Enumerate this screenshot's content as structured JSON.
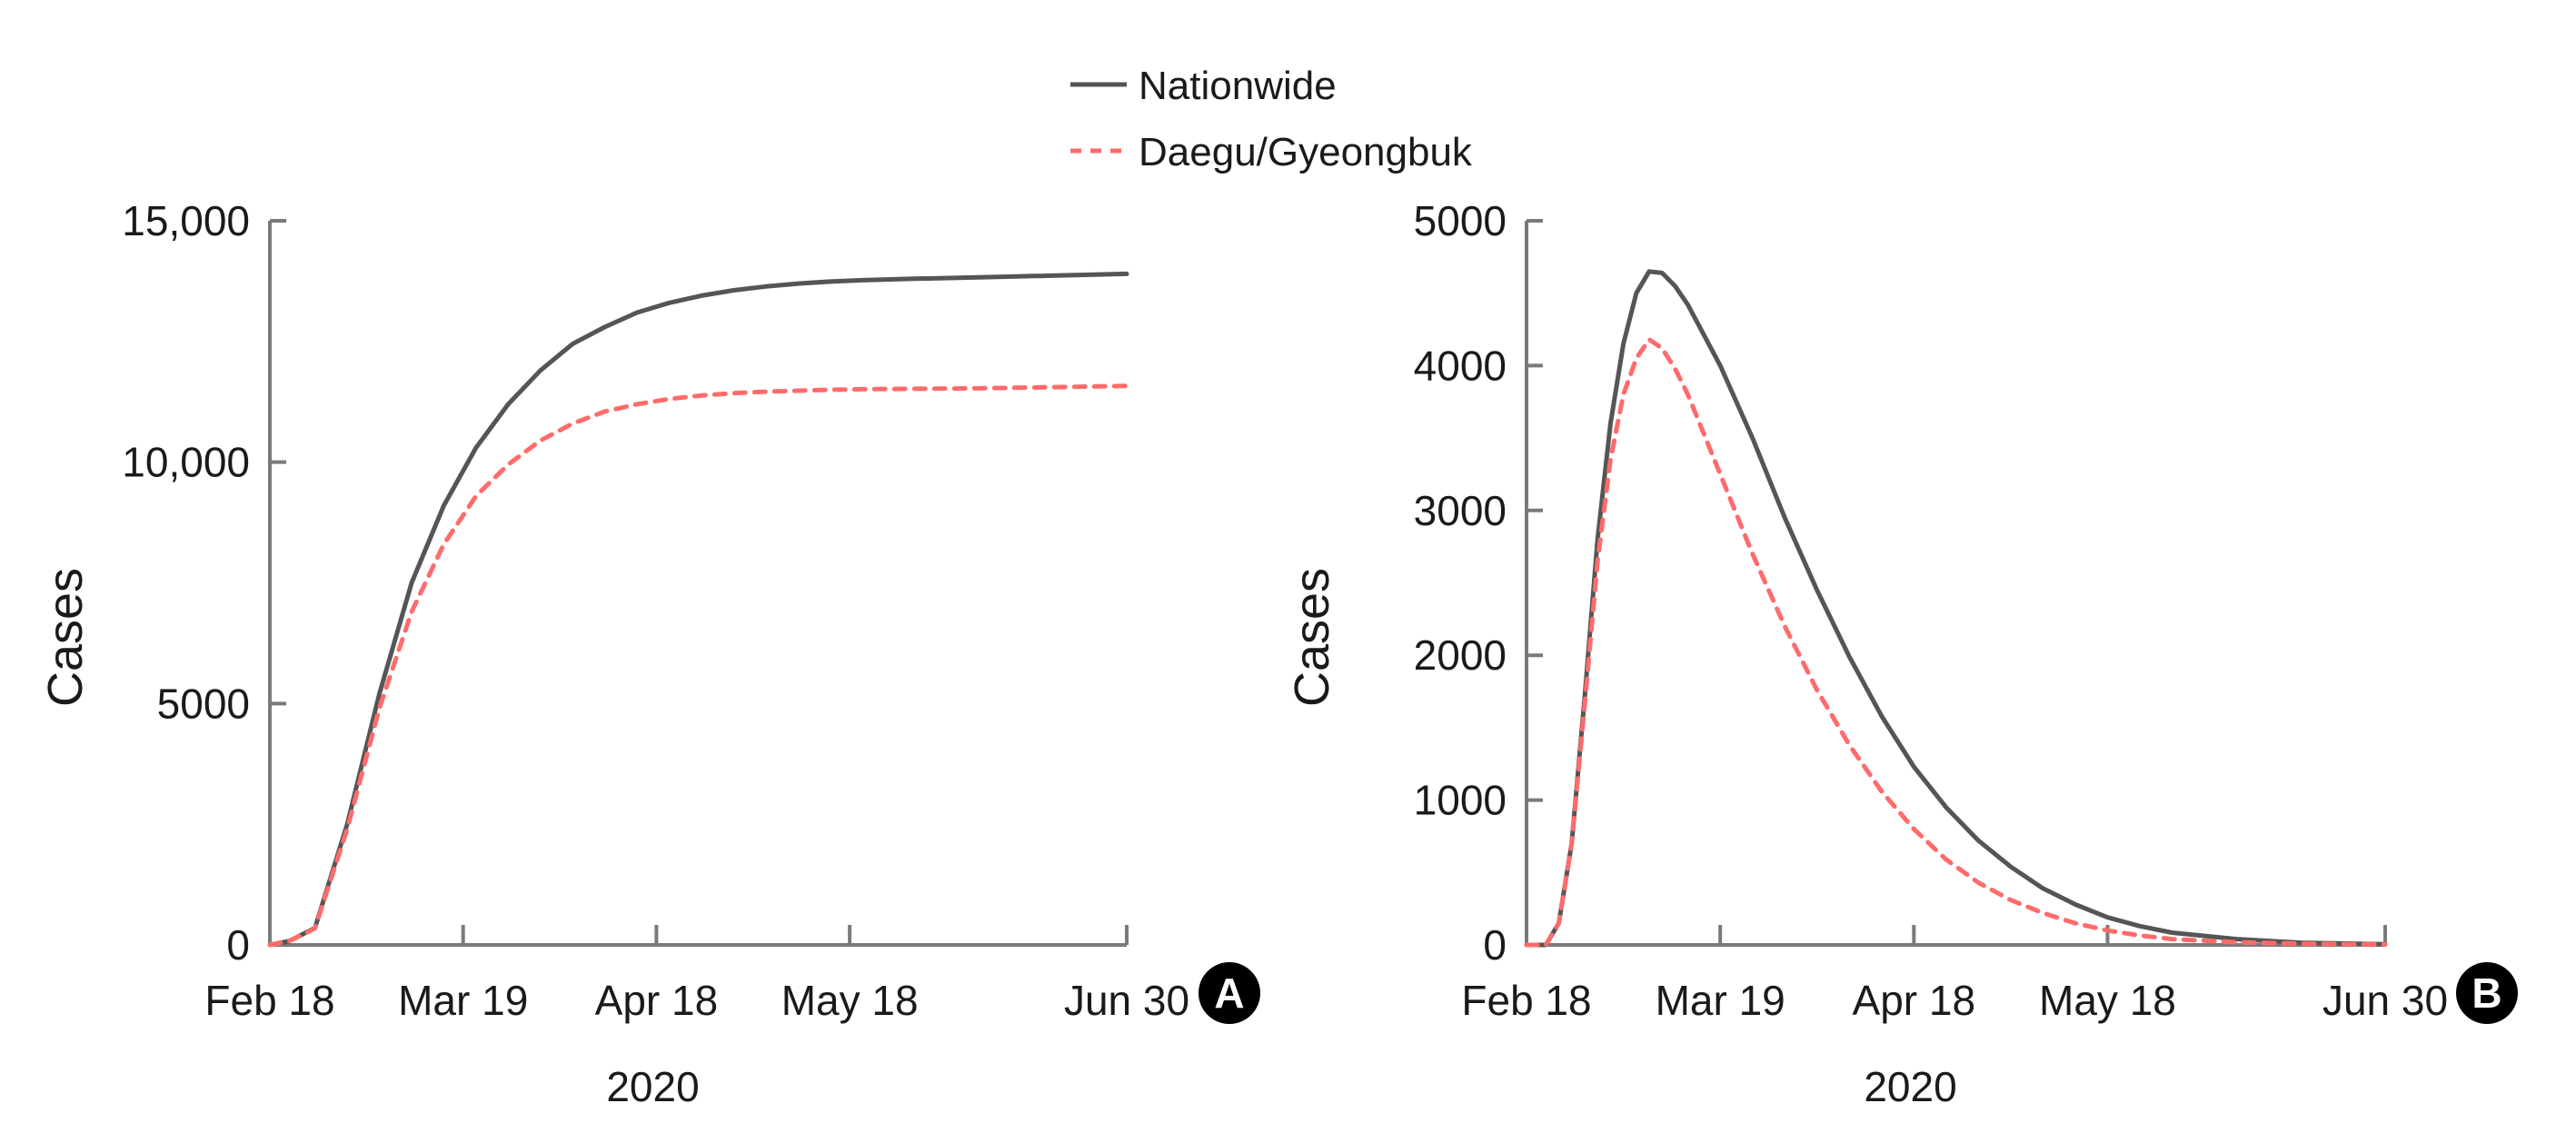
{
  "legend": [
    {
      "label": "Nationwide",
      "color": "#555555",
      "dash": "solid"
    },
    {
      "label": "Daegu/Gyeongbuk",
      "color": "#ff6b6b",
      "dash": "dashed"
    }
  ],
  "chart_data": [
    {
      "type": "line",
      "panel": "A",
      "ylabel": "Cases",
      "xlabel": "2020",
      "ylim": [
        0,
        15000
      ],
      "yticks": [
        0,
        5000,
        10000,
        15000
      ],
      "ytick_labels": [
        "0",
        "5000",
        "10,000",
        "15,000"
      ],
      "xlim": [
        0,
        133
      ],
      "xticks": [
        0,
        30,
        60,
        90,
        133
      ],
      "xtick_labels": [
        "Feb 18",
        "Mar 19",
        "Apr 18",
        "May 18",
        "Jun 30"
      ],
      "series": [
        {
          "name": "Nationwide",
          "x": [
            0,
            3,
            7,
            12,
            17,
            22,
            27,
            32,
            37,
            42,
            47,
            52,
            57,
            62,
            67,
            72,
            77,
            82,
            87,
            92,
            100,
            110,
            120,
            133
          ],
          "y": [
            0,
            80,
            350,
            2500,
            5200,
            7500,
            9100,
            10300,
            11200,
            11900,
            12450,
            12800,
            13100,
            13300,
            13450,
            13560,
            13640,
            13700,
            13740,
            13770,
            13800,
            13830,
            13860,
            13900
          ]
        },
        {
          "name": "Daegu/Gyeongbuk",
          "x": [
            0,
            3,
            7,
            12,
            17,
            22,
            27,
            32,
            37,
            42,
            47,
            52,
            57,
            62,
            67,
            72,
            77,
            82,
            87,
            92,
            100,
            110,
            120,
            133
          ],
          "y": [
            0,
            80,
            340,
            2400,
            4900,
            6900,
            8300,
            9300,
            9950,
            10450,
            10800,
            11050,
            11200,
            11310,
            11380,
            11430,
            11460,
            11480,
            11500,
            11510,
            11520,
            11530,
            11550,
            11580
          ]
        }
      ],
      "badge": "A"
    },
    {
      "type": "line",
      "panel": "B",
      "ylabel": "Cases",
      "xlabel": "2020",
      "ylim": [
        0,
        5000
      ],
      "yticks": [
        0,
        1000,
        2000,
        3000,
        4000,
        5000
      ],
      "ytick_labels": [
        "0",
        "1000",
        "2000",
        "3000",
        "4000",
        "5000"
      ],
      "xlim": [
        0,
        133
      ],
      "xticks": [
        0,
        30,
        60,
        90,
        133
      ],
      "xtick_labels": [
        "Feb 18",
        "Mar 19",
        "Apr 18",
        "May 18",
        "Jun 30"
      ],
      "series": [
        {
          "name": "Nationwide",
          "x": [
            0,
            3,
            5,
            7,
            9,
            11,
            13,
            15,
            17,
            19,
            21,
            23,
            25,
            30,
            35,
            40,
            45,
            50,
            55,
            60,
            65,
            70,
            75,
            80,
            85,
            90,
            95,
            100,
            110,
            120,
            133
          ],
          "y": [
            0,
            0,
            150,
            700,
            1700,
            2800,
            3600,
            4150,
            4500,
            4650,
            4640,
            4550,
            4420,
            4000,
            3500,
            2950,
            2450,
            1990,
            1580,
            1230,
            950,
            720,
            540,
            390,
            280,
            190,
            130,
            85,
            40,
            15,
            5
          ]
        },
        {
          "name": "Daegu/Gyeongbuk",
          "x": [
            0,
            3,
            5,
            7,
            9,
            11,
            13,
            15,
            17,
            19,
            21,
            23,
            25,
            30,
            35,
            40,
            45,
            50,
            55,
            60,
            65,
            70,
            75,
            80,
            85,
            90,
            95,
            100,
            110,
            120,
            133
          ],
          "y": [
            0,
            0,
            150,
            700,
            1650,
            2650,
            3350,
            3800,
            4050,
            4180,
            4120,
            3980,
            3800,
            3250,
            2700,
            2200,
            1760,
            1380,
            1060,
            800,
            590,
            430,
            310,
            220,
            150,
            100,
            65,
            40,
            18,
            8,
            3
          ]
        }
      ],
      "badge": "B"
    }
  ]
}
